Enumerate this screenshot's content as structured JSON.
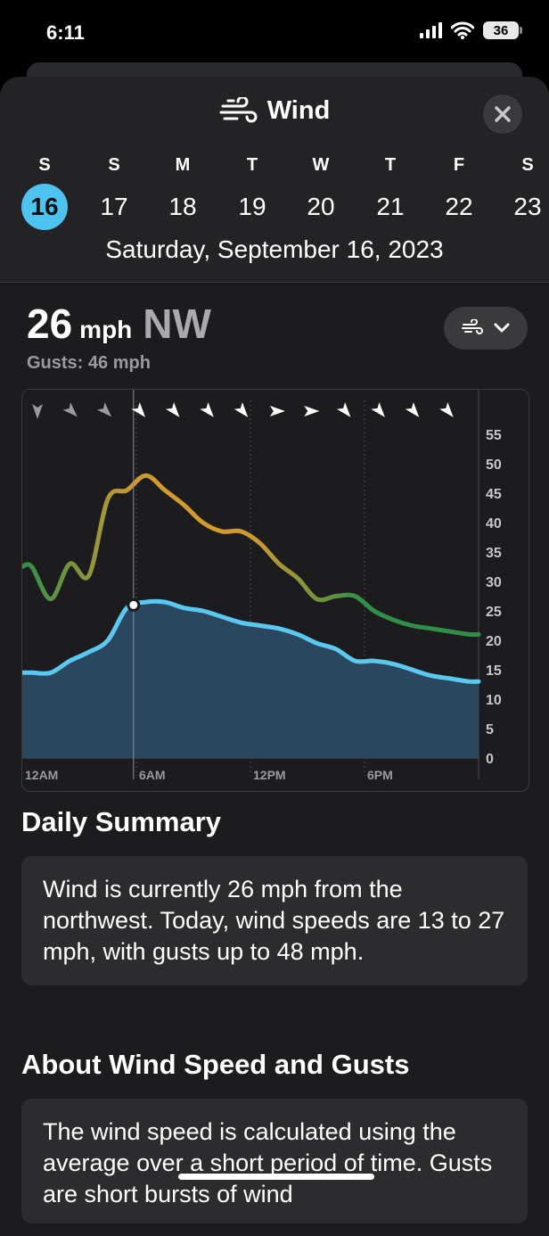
{
  "status": {
    "time": "6:11",
    "battery": "36"
  },
  "header": {
    "title": "Wind"
  },
  "week": [
    {
      "letter": "S",
      "num": "16",
      "selected": true
    },
    {
      "letter": "S",
      "num": "17"
    },
    {
      "letter": "M",
      "num": "18"
    },
    {
      "letter": "T",
      "num": "19"
    },
    {
      "letter": "W",
      "num": "20"
    },
    {
      "letter": "T",
      "num": "21"
    },
    {
      "letter": "F",
      "num": "22"
    },
    {
      "letter": "S",
      "num": "23"
    }
  ],
  "selected_date": "Saturday, September 16, 2023",
  "current": {
    "speed": "26",
    "unit": "mph",
    "direction": "NW",
    "gusts": "Gusts: 46 mph"
  },
  "chart_data": {
    "type": "area",
    "x_labels": [
      "12AM",
      "6AM",
      "12PM",
      "6PM"
    ],
    "ylim": [
      0,
      55
    ],
    "y_ticks": [
      "55",
      "50",
      "45",
      "40",
      "35",
      "30",
      "25",
      "20",
      "15",
      "10",
      "5",
      "0"
    ],
    "hours": [
      0,
      1,
      2,
      3,
      4,
      5,
      6,
      7,
      8,
      9,
      10,
      11,
      12,
      13,
      14,
      15,
      16,
      17,
      18,
      19,
      20,
      21,
      22,
      23
    ],
    "series": [
      {
        "values": [
          14.5,
          14.5,
          16.5,
          18,
          20,
          25.5,
          26.5,
          26.5,
          25.5,
          25,
          24,
          23,
          22.5,
          22,
          21,
          19.5,
          18.5,
          16.5,
          16.5,
          16,
          15,
          14,
          13.5,
          13
        ]
      },
      {
        "values": [
          32.5,
          27,
          33,
          31,
          44,
          45.5,
          48,
          45.5,
          43,
          40,
          38.5,
          38.5,
          36.5,
          33,
          30.5,
          27,
          27.5,
          27.5,
          25,
          23.5,
          22.5,
          22,
          21.5,
          21
        ]
      }
    ],
    "current_hour": 5.85,
    "current_value": 26,
    "direction_arrows": [
      {
        "hour": 0.8,
        "deg": 180
      },
      {
        "hour": 2.6,
        "deg": 135
      },
      {
        "hour": 4.4,
        "deg": 135
      },
      {
        "hour": 6.2,
        "deg": 140
      },
      {
        "hour": 8,
        "deg": 140
      },
      {
        "hour": 9.8,
        "deg": 140
      },
      {
        "hour": 11.6,
        "deg": 140
      },
      {
        "hour": 13.4,
        "deg": 90
      },
      {
        "hour": 15.2,
        "deg": 90
      },
      {
        "hour": 17,
        "deg": 140
      },
      {
        "hour": 18.8,
        "deg": 140
      },
      {
        "hour": 20.6,
        "deg": 140
      },
      {
        "hour": 22.4,
        "deg": 140
      }
    ],
    "colors": {
      "wind": "#5ac8ef",
      "wind_fill": "#2c4d66",
      "gust_low": "#2f8f49",
      "gust_mid": "#d19a2f"
    }
  },
  "summary": {
    "title": "Daily Summary",
    "text": "Wind is currently 26 mph from the northwest. Today, wind speeds are 13 to 27 mph, with gusts up to 48 mph."
  },
  "about": {
    "title": "About Wind Speed and Gusts",
    "text": "The wind speed is calculated using the average over a short period of time. Gusts are short bursts of wind"
  }
}
